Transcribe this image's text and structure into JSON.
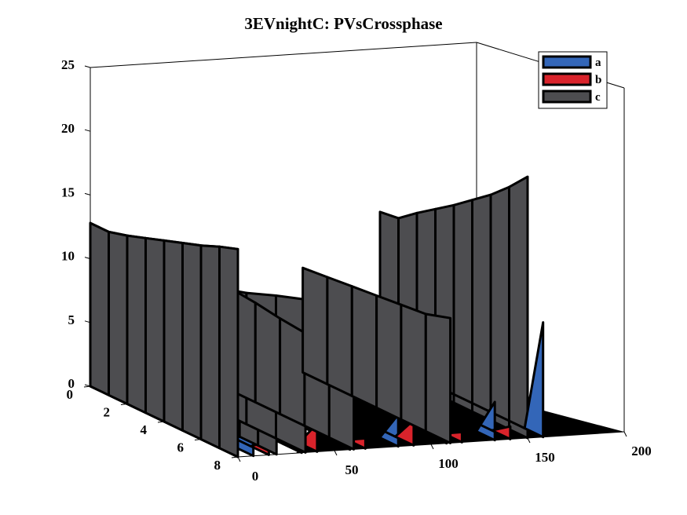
{
  "chart_data": {
    "type": "3d-ribbon",
    "title": "3EVnightC: PVsCrossphase",
    "xlabel": "",
    "ylabel": "",
    "zlabel": "",
    "x_ticks": [
      "0",
      "50",
      "100",
      "150",
      "200"
    ],
    "y_ticks": [
      "0",
      "2",
      "4",
      "6",
      "8"
    ],
    "z_ticks": [
      "0",
      "5",
      "10",
      "15",
      "20",
      "25"
    ],
    "xlim": [
      0,
      200
    ],
    "ylim": [
      0,
      8
    ],
    "zlim": [
      0,
      25
    ],
    "grid": false,
    "legend_position": "top-right",
    "series": [
      {
        "name": "a",
        "color": "#3366b8",
        "ribbons": [
          {
            "x": 0,
            "values": [
              0,
              0,
              0,
              0,
              0,
              0,
              0,
              0,
              7.0
            ]
          },
          {
            "x": 25,
            "values": [
              0,
              0,
              0,
              0,
              0,
              0,
              0,
              0,
              2.5
            ]
          },
          {
            "x": 50,
            "values": [
              0,
              0,
              0,
              0,
              0,
              0,
              0,
              0,
              6.5
            ]
          },
          {
            "x": 75,
            "values": [
              0,
              0,
              0,
              0,
              0,
              0,
              0,
              0,
              2.5
            ]
          },
          {
            "x": 100,
            "values": [
              0,
              0,
              0,
              0,
              0,
              0,
              0,
              0,
              7.0
            ]
          },
          {
            "x": 125,
            "values": [
              0,
              0,
              0,
              0,
              0,
              0,
              0,
              0,
              3.0
            ]
          },
          {
            "x": 150,
            "values": [
              0,
              0,
              0,
              0,
              0,
              0,
              0,
              0,
              9.0
            ]
          }
        ]
      },
      {
        "name": "b",
        "color": "#d9232b",
        "ribbons": [
          {
            "x": 0,
            "values": [
              0,
              0,
              0,
              0,
              0,
              0,
              0,
              0,
              1.0
            ]
          },
          {
            "x": 25,
            "values": [
              0,
              0,
              0,
              0,
              0,
              0,
              0,
              0,
              2.2
            ]
          },
          {
            "x": 50,
            "values": [
              0,
              0,
              0,
              0,
              0,
              0,
              0,
              0,
              0.8
            ]
          },
          {
            "x": 75,
            "values": [
              0,
              0,
              0,
              0,
              0,
              0,
              0,
              0,
              2.0
            ]
          },
          {
            "x": 100,
            "values": [
              0,
              0,
              0,
              0,
              0,
              0,
              0,
              0,
              0.8
            ]
          },
          {
            "x": 125,
            "values": [
              0,
              0,
              0,
              0,
              0,
              0,
              0,
              0,
              1.0
            ]
          }
        ]
      },
      {
        "name": "c",
        "color": "#4d4d50",
        "ribbons": [
          {
            "x": 0,
            "values": [
              12.8,
              12.8,
              13.2,
              13.7,
              14.2,
              14.7,
              15.2,
              15.8,
              16.3
            ]
          },
          {
            "x": 25,
            "values": [
              0,
              0,
              0,
              0,
              0,
              0,
              0,
              0,
              0
            ]
          },
          {
            "x": 50,
            "values": [
              0,
              0,
              0,
              0,
              0,
              0,
              0,
              0,
              0
            ]
          },
          {
            "x": 75,
            "values": [
              0,
              0,
              0,
              0,
              0,
              0,
              0,
              0,
              0
            ]
          },
          {
            "x": 100,
            "values": [
              0,
              0,
              0,
              0,
              0,
              0,
              0,
              0,
              0
            ]
          },
          {
            "x": 125,
            "values": [
              0,
              0,
              0,
              0,
              0,
              0,
              0,
              0,
              0
            ]
          },
          {
            "x": 150,
            "values": [
              12.2,
              12.4,
              13.5,
              14.5,
              15.5,
              16.6,
              17.7,
              19.0,
              20.5
            ]
          }
        ],
        "mid_ribbons": [
          {
            "values": [
              10.5,
              10.5,
              10.6,
              10.7,
              10.8,
              10.9,
              11.0,
              11.1,
              11.3
            ]
          },
          {
            "values": [
              8.6,
              8.9,
              9.6,
              10.3,
              11.2,
              12.0
            ]
          },
          {
            "values": [
              8.0,
              8.0,
              7.8,
              7.5,
              7.3,
              7.2,
              7.0
            ]
          },
          {
            "values": [
              8.2,
              8.4,
              8.6,
              8.8,
              9.0,
              9.2,
              9.8
            ]
          }
        ]
      }
    ]
  }
}
